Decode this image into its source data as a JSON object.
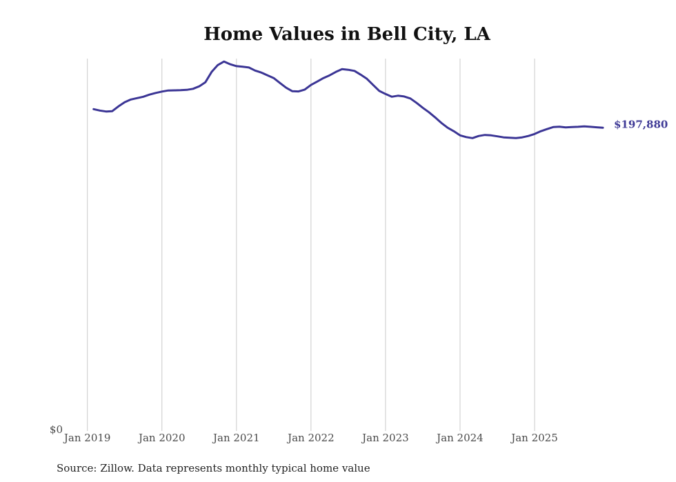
{
  "chart_data": {
    "type": "line",
    "title": "Home Values in Bell City, LA",
    "xlabel": "",
    "ylabel": "",
    "ylim": [
      0,
      243000
    ],
    "grid": "vertical",
    "y_ticks": [
      {
        "value": 0,
        "label": "$0"
      }
    ],
    "x_ticks": [
      {
        "date": "2019-01",
        "label": "Jan 2019"
      },
      {
        "date": "2020-01",
        "label": "Jan 2020"
      },
      {
        "date": "2021-01",
        "label": "Jan 2021"
      },
      {
        "date": "2022-01",
        "label": "Jan 2022"
      },
      {
        "date": "2023-01",
        "label": "Jan 2023"
      },
      {
        "date": "2024-01",
        "label": "Jan 2024"
      },
      {
        "date": "2025-01",
        "label": "Jan 2025"
      }
    ],
    "x": [
      "2019-01",
      "2019-02",
      "2019-03",
      "2019-04",
      "2019-05",
      "2019-06",
      "2019-07",
      "2019-08",
      "2019-09",
      "2019-10",
      "2019-11",
      "2019-12",
      "2020-01",
      "2020-02",
      "2020-03",
      "2020-04",
      "2020-05",
      "2020-06",
      "2020-07",
      "2020-08",
      "2020-09",
      "2020-10",
      "2020-11",
      "2020-12",
      "2021-01",
      "2021-02",
      "2021-03",
      "2021-04",
      "2021-05",
      "2021-06",
      "2021-07",
      "2021-08",
      "2021-09",
      "2021-10",
      "2021-11",
      "2021-12",
      "2022-01",
      "2022-02",
      "2022-03",
      "2022-04",
      "2022-05",
      "2022-06",
      "2022-07",
      "2022-08",
      "2022-09",
      "2022-10",
      "2022-11",
      "2022-12",
      "2023-01",
      "2023-02",
      "2023-03",
      "2023-04",
      "2023-05",
      "2023-06",
      "2023-07",
      "2023-08",
      "2023-09",
      "2023-10",
      "2023-11",
      "2023-12",
      "2024-01",
      "2024-02",
      "2024-03",
      "2024-04",
      "2024-05",
      "2024-06",
      "2024-07",
      "2024-08",
      "2024-09",
      "2024-10",
      "2024-11",
      "2024-12",
      "2025-01",
      "2025-02",
      "2025-03",
      "2025-04",
      "2025-05",
      "2025-06",
      "2025-07",
      "2025-08",
      "2025-09",
      "2025-10",
      "2025-11"
    ],
    "series": [
      {
        "name": "Typical home value",
        "color": "#3b3595",
        "values": [
          210000,
          209100,
          208500,
          208700,
          211800,
          214500,
          216300,
          217200,
          218100,
          219500,
          220600,
          221500,
          222200,
          222300,
          222400,
          222600,
          223300,
          224900,
          227600,
          234300,
          238800,
          241100,
          239300,
          238100,
          237700,
          237200,
          235200,
          233900,
          232100,
          230300,
          227100,
          224000,
          221700,
          221600,
          222800,
          225800,
          228000,
          230300,
          232100,
          234300,
          236100,
          235700,
          235000,
          232500,
          229800,
          225800,
          221900,
          219900,
          218100,
          218800,
          218300,
          217000,
          214100,
          210900,
          208000,
          204600,
          201000,
          197900,
          195600,
          192900,
          191800,
          191100,
          192500,
          193200,
          192900,
          192300,
          191600,
          191400,
          191100,
          191600,
          192500,
          193800,
          195600,
          197000,
          198300,
          198600,
          198100,
          198300,
          198500,
          198800,
          198500,
          198200,
          197880
        ]
      }
    ],
    "annotations": [
      {
        "text": "$197,880",
        "attached_to": "last-point",
        "color": "#3f3a96"
      }
    ],
    "source": "Source: Zillow. Data represents monthly typical home value"
  }
}
